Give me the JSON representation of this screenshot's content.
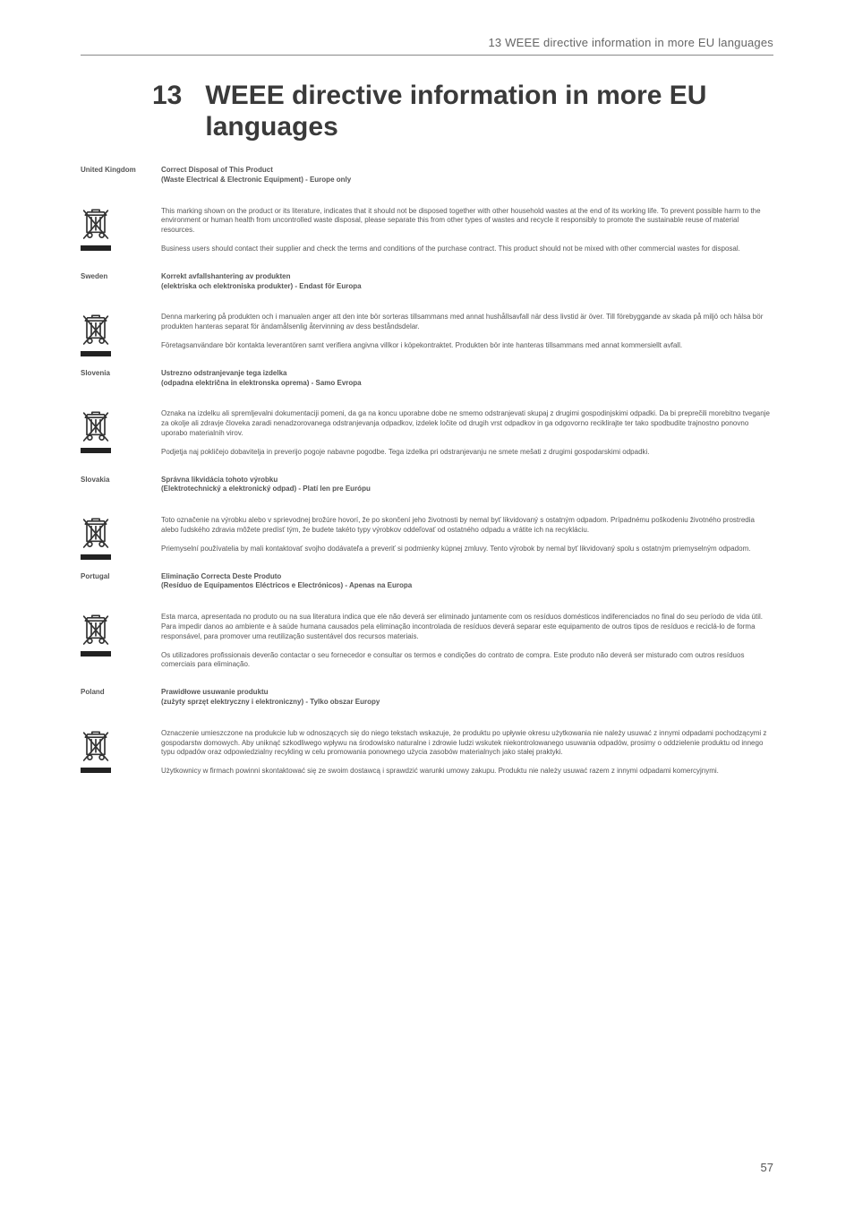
{
  "running_head": "13 WEEE directive information in more EU languages",
  "chapter": {
    "num": "13",
    "title": "WEEE directive information in more EU languages"
  },
  "page_number": "57",
  "sections": [
    {
      "country": "United Kingdom",
      "title1": "Correct Disposal of This Product",
      "title2": "(Waste Electrical & Electronic Equipment) - Europe only",
      "p1": "This marking shown on the product or its literature, indicates that it should not be disposed together with other household wastes at the end of its working life. To prevent possible harm to the environment or human health from uncontrolled waste disposal, please separate this from other types of wastes and recycle it responsibly to promote the sustainable reuse of material resources.",
      "p2": "Business users should contact their supplier and check the terms and conditions of the purchase contract. This product should not be mixed with other commercial wastes for disposal."
    },
    {
      "country": "Sweden",
      "title1": "Korrekt avfallshantering av produkten",
      "title2": "(elektriska och elektroniska produkter) - Endast för Europa",
      "p1": "Denna markering på produkten och i manualen anger att den inte bör sorteras tillsammans med annat hushållsavfall när dess livstid är över. Till förebyggande av skada på miljö och hälsa bör produkten hanteras separat för ändamålsenlig återvinning av dess beståndsdelar.",
      "p2": "Företagsanvändare bör kontakta leverantören samt verifiera angivna villkor i köpekontraktet. Produkten bör inte hanteras tillsammans med annat kommersiellt avfall."
    },
    {
      "country": "Slovenia",
      "title1": "Ustrezno odstranjevanje tega izdelka",
      "title2": "(odpadna električna in elektronska oprema) - Samo Evropa",
      "p1": "Oznaka na izdelku ali spremljevalni dokumentaciji pomeni, da ga na koncu uporabne dobe ne smemo odstranjevati skupaj z drugimi gospodinjskimi odpadki. Da bi preprečili morebitno tveganje za okolje ali zdravje človeka zaradi nenadzorovanega odstranjevanja odpadkov, izdelek ločite od drugih vrst odpadkov in ga odgovorno reciklirajte ter tako spodbudite trajnostno ponovno uporabo materialnih virov.",
      "p2": "Podjetja naj pokličejo dobavitelja in preverijo pogoje nabavne pogodbe. Tega izdelka pri odstranjevanju ne smete mešati z drugimi gospodarskimi odpadki."
    },
    {
      "country": "Slovakia",
      "title1": "Správna likvidácia tohoto výrobku",
      "title2": "(Elektrotechnický a elektronický odpad) - Platí len pre Európu",
      "p1": "Toto označenie na výrobku alebo v sprievodnej brožúre hovorí, že po skončení jeho životnosti by nemal byť likvidovaný s ostatným odpadom. Prípadnému poškodeniu životného prostredia alebo ľudského zdravia môžete predísť tým, že budete takéto typy výrobkov oddeľovať od ostatného odpadu a vrátite ich na recykláciu.",
      "p2": "Priemyselní používatelia by mali kontaktovať svojho dodávateľa a preveriť si podmienky kúpnej zmluvy. Tento výrobok by nemal byť likvidovaný spolu s ostatným priemyselným odpadom."
    },
    {
      "country": "Portugal",
      "title1": "Eliminação Correcta Deste Produto",
      "title2": "(Resíduo de Equipamentos Eléctricos e Electrónicos)  - Apenas na Europa",
      "p1": "Esta marca, apresentada no produto ou na sua literatura indica que ele não deverá ser eliminado juntamente com os resíduos domésticos indiferenciados no final do seu período de vida útil. Para impedir danos ao ambiente e à saúde humana causados pela eliminação incontrolada de resíduos deverá separar este equipamento de outros tipos de resíduos e reciclá-lo de forma responsável, para promover uma reutilização sustentável dos recursos materiais.",
      "p2": "Os utilizadores profissionais deverão contactar o seu fornecedor e consultar os termos e condições do contrato de compra. Este produto não deverá ser misturado com outros resíduos comerciais para eliminação."
    },
    {
      "country": "Poland",
      "title1": "Prawidłowe usuwanie produktu",
      "title2": "(zużyty sprzęt elektryczny i elektroniczny) - Tylko obszar Europy",
      "p1": "Oznaczenie umieszczone na produkcie lub w odnoszących się do niego tekstach wskazuje, że produktu po upływie okresu użytkowania nie należy usuwać z innymi odpadami pochodzącymi z gospodarstw domowych. Aby uniknąć szkodliwego wpływu na środowisko naturalne i zdrowie ludzi wskutek niekontrolowanego usuwania odpadów, prosimy o oddzielenie produktu od innego typu odpadów oraz odpowiedzialny recykling w celu promowania ponownego użycia zasobów materialnych jako stałej praktyki.",
      "p2": "Użytkownicy w firmach powinni skontaktować się ze swoim dostawcą i sprawdzić warunki umowy zakupu. Produktu nie należy usuwać razem z innymi odpadami komercyjnymi."
    }
  ]
}
